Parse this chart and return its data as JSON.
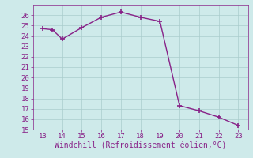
{
  "x": [
    13,
    13.5,
    14,
    15,
    16,
    17,
    18,
    19,
    20,
    21,
    22,
    23
  ],
  "y": [
    24.7,
    24.6,
    23.7,
    24.8,
    25.8,
    26.3,
    25.8,
    25.4,
    17.3,
    16.8,
    16.2,
    15.4
  ],
  "line_color": "#882288",
  "marker": "+",
  "marker_size": 4,
  "marker_linewidth": 1.2,
  "bg_color": "#ceeaea",
  "grid_color": "#aacccc",
  "xlabel": "Windchill (Refroidissement éolien,°C)",
  "xlim": [
    12.5,
    23.5
  ],
  "ylim": [
    15,
    27
  ],
  "xticks": [
    13,
    14,
    15,
    16,
    17,
    18,
    19,
    20,
    21,
    22,
    23
  ],
  "yticks": [
    15,
    16,
    17,
    18,
    19,
    20,
    21,
    22,
    23,
    24,
    25,
    26
  ],
  "tick_label_color": "#882288",
  "xlabel_color": "#882288",
  "xlabel_fontsize": 7,
  "tick_fontsize": 6.5,
  "linewidth": 1.0
}
